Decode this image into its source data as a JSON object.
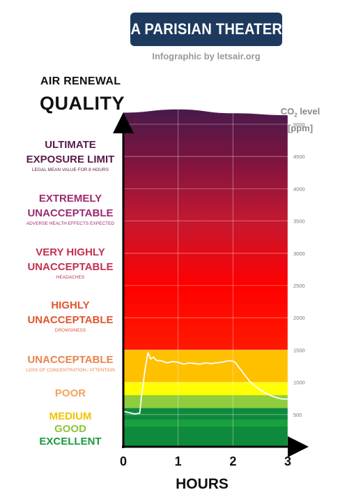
{
  "header": {
    "title": "A PARISIAN THEATER",
    "credit": "Infographic by letsair.org"
  },
  "left_title": {
    "line1": "AIR RENEWAL",
    "line2": "QUALITY"
  },
  "y_axis_title": {
    "text": "CO",
    "sub": "2",
    "suffix": " level",
    "unit": "[ppm]"
  },
  "categories": [
    {
      "name_lines": [
        "ULTIMATE",
        "EXPOSURE LIMIT"
      ],
      "desc": "LEGAL MEAN VALUE FOR 8 HOURS",
      "color": "#5a1a4a"
    },
    {
      "name_lines": [
        "EXTREMELY",
        "UNACCEPTABLE"
      ],
      "desc": "ADVERSE HEALTH EFFECTS EXPECTED",
      "color": "#9b2a6f"
    },
    {
      "name_lines": [
        "VERY HIGHLY",
        "UNACCEPTABLE"
      ],
      "desc": "HEADACHES",
      "color": "#c3304e"
    },
    {
      "name_lines": [
        "HIGHLY",
        "UNACCEPTABLE"
      ],
      "desc": "DROWSINESS",
      "color": "#e1542e"
    },
    {
      "name_lines": [
        "UNACCEPTABLE"
      ],
      "desc": "LOSS OF CONCENTRATION / ATTENTION",
      "color": "#e9824a"
    },
    {
      "name_lines": [
        "POOR"
      ],
      "desc": "",
      "color": "#f1a35f"
    },
    {
      "name_lines": [
        "MEDIUM"
      ],
      "desc": "",
      "color": "#f2c200"
    },
    {
      "name_lines": [
        "GOOD"
      ],
      "desc": "",
      "color": "#8cc43c"
    },
    {
      "name_lines": [
        "EXCELLENT"
      ],
      "desc": "",
      "color": "#1a9a3c"
    }
  ],
  "chart_data": {
    "type": "line",
    "title": "A PARISIAN THEATER",
    "xlabel": "HOURS",
    "ylabel": "CO2 level [ppm]",
    "xlim": [
      0,
      3
    ],
    "ylim": [
      0,
      5200
    ],
    "x_ticks": [
      "0",
      "1",
      "2",
      "3"
    ],
    "y_ticks": [
      "500",
      "1000",
      "1500",
      "2000",
      "2500",
      "3000",
      "3500",
      "4000",
      "4500",
      "5000"
    ],
    "grid": true,
    "bands": [
      {
        "from": 0,
        "to": 600,
        "color": "#0e8a3c",
        "label": "EXCELLENT"
      },
      {
        "from": 600,
        "to": 800,
        "color": "#8fcd3c",
        "label": "GOOD"
      },
      {
        "from": 800,
        "to": 1000,
        "color": "#ffff00",
        "label": "MEDIUM"
      },
      {
        "from": 1000,
        "to": 1500,
        "color": "#ffc000",
        "label": "POOR"
      },
      {
        "from": 1500,
        "to": 5200,
        "color": "gradient",
        "label": "UNACCEPTABLE and above"
      }
    ],
    "gradient_stops": [
      {
        "ppm": 1500,
        "color": "#ff1a00"
      },
      {
        "ppm": 2500,
        "color": "#ff0000"
      },
      {
        "ppm": 3500,
        "color": "#c41830"
      },
      {
        "ppm": 4500,
        "color": "#7a1440"
      },
      {
        "ppm": 5200,
        "color": "#4a1a4a"
      }
    ],
    "band_top_curve": [
      {
        "x": 0,
        "y": 5180
      },
      {
        "x": 1,
        "y": 5230
      },
      {
        "x": 2,
        "y": 5170
      },
      {
        "x": 3,
        "y": 5140
      }
    ],
    "series": [
      {
        "color": "#ffffff",
        "x": [
          0,
          0.1,
          0.2,
          0.3,
          0.33,
          0.4,
          0.45,
          0.48,
          0.5,
          0.55,
          0.6,
          0.7,
          0.8,
          0.9,
          1.0,
          1.1,
          1.2,
          1.3,
          1.4,
          1.5,
          1.6,
          1.7,
          1.8,
          1.9,
          2.0,
          2.05,
          2.1,
          2.2,
          2.3,
          2.4,
          2.5,
          2.6,
          2.7,
          2.8,
          2.9,
          3.0
        ],
        "y": [
          550,
          530,
          510,
          520,
          780,
          1220,
          1460,
          1400,
          1360,
          1390,
          1340,
          1330,
          1300,
          1320,
          1310,
          1280,
          1300,
          1290,
          1280,
          1300,
          1290,
          1300,
          1310,
          1330,
          1330,
          1300,
          1240,
          1130,
          1020,
          940,
          880,
          830,
          790,
          760,
          740,
          740
        ]
      }
    ]
  }
}
